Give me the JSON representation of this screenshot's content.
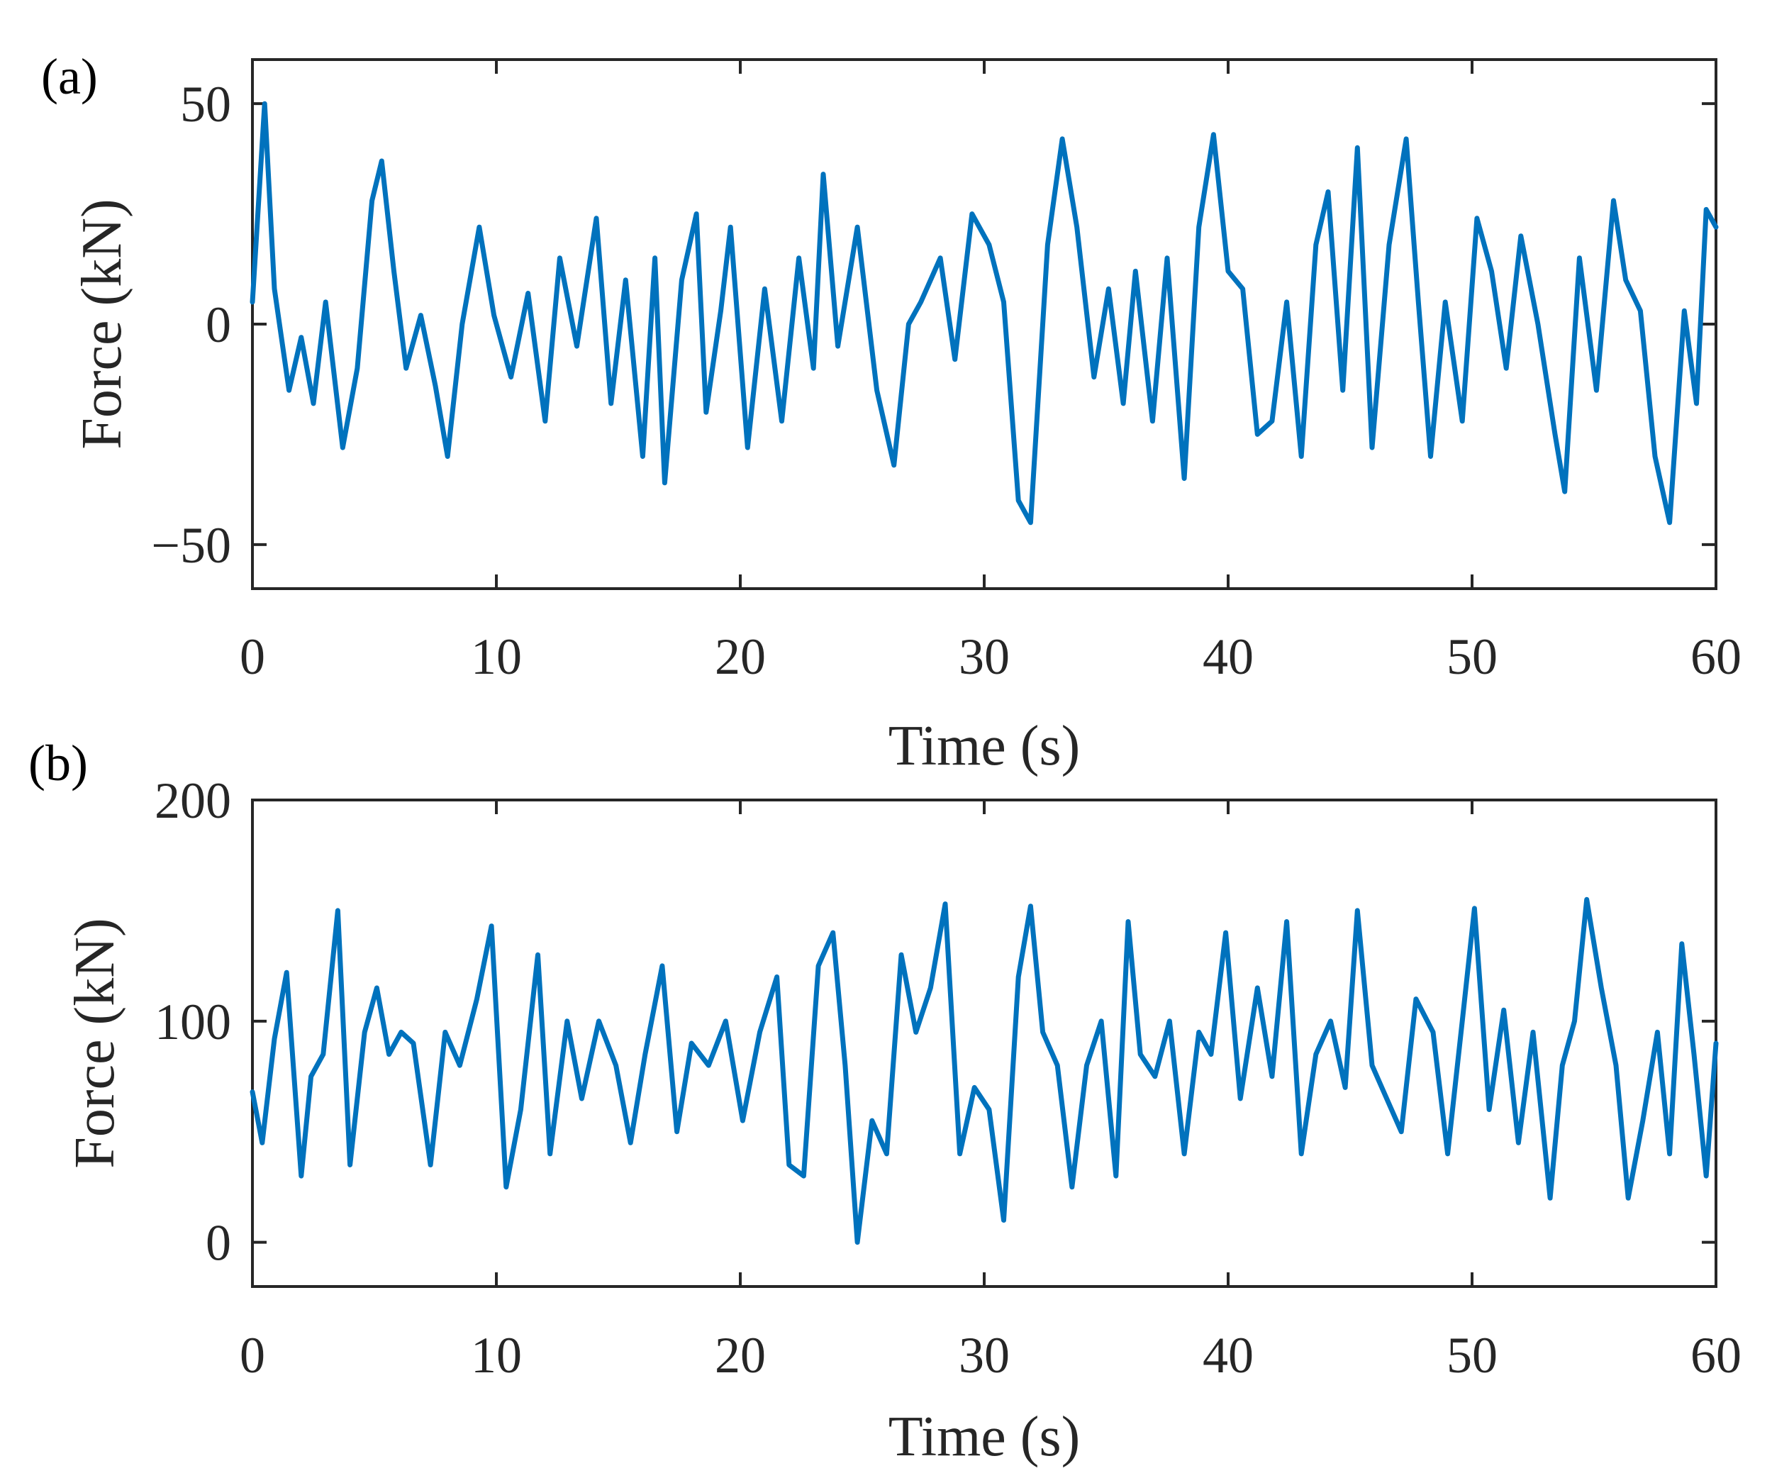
{
  "chart_data": [
    {
      "type": "line",
      "panel_label": "(a)",
      "xlabel": "Time (s)",
      "ylabel": "Force (kN)",
      "xlim": [
        0,
        60
      ],
      "ylim": [
        -60,
        60
      ],
      "x_ticks": [
        0,
        10,
        20,
        30,
        40,
        50,
        60
      ],
      "y_ticks": [
        -50,
        0,
        50
      ],
      "x_tick_labels": [
        "0",
        "10",
        "20",
        "30",
        "40",
        "50",
        "60"
      ],
      "y_tick_labels": [
        "−50",
        "0",
        "50"
      ],
      "grid": false,
      "legend": "none",
      "color": "#0072BD",
      "series": [
        {
          "x": [
            0,
            0.5,
            0.9,
            1.5,
            2.0,
            2.5,
            3.0,
            3.7,
            4.3,
            4.9,
            5.3,
            5.8,
            6.3,
            6.9,
            7.5,
            8.0,
            8.6,
            9.3,
            9.9,
            10.6,
            11.3,
            12.0,
            12.6,
            13.3,
            14.1,
            14.7,
            15.3,
            16.0,
            16.5,
            16.9,
            17.6,
            18.2,
            18.6,
            19.2,
            19.6,
            20.3,
            21.0,
            21.7,
            22.4,
            23.0,
            23.4,
            24.0,
            24.8,
            25.6,
            26.3,
            26.9,
            27.4,
            28.2,
            28.8,
            29.5,
            30.2,
            30.8,
            31.4,
            31.9,
            32.6,
            33.2,
            33.8,
            34.5,
            35.1,
            35.7,
            36.2,
            36.9,
            37.5,
            38.2,
            38.8,
            39.4,
            40.0,
            40.6,
            41.2,
            41.8,
            42.4,
            43.0,
            43.6,
            44.1,
            44.7,
            45.3,
            45.9,
            46.6,
            47.3,
            47.8,
            48.3,
            48.9,
            49.6,
            50.2,
            50.8,
            51.4,
            52.0,
            52.7,
            53.4,
            53.8,
            54.4,
            55.1,
            55.8,
            56.3,
            56.9,
            57.5,
            58.1,
            58.7,
            59.2,
            59.6,
            60.0
          ],
          "y": [
            5,
            50,
            8,
            -15,
            -3,
            -18,
            5,
            -28,
            -10,
            28,
            37,
            12,
            -10,
            2,
            -14,
            -30,
            0,
            22,
            2,
            -12,
            7,
            -22,
            15,
            -5,
            24,
            -18,
            10,
            -30,
            15,
            -36,
            10,
            25,
            -20,
            3,
            22,
            -28,
            8,
            -22,
            15,
            -10,
            34,
            -5,
            22,
            -15,
            -32,
            0,
            5,
            15,
            -8,
            25,
            18,
            5,
            -40,
            -45,
            18,
            42,
            22,
            -12,
            8,
            -18,
            12,
            -22,
            15,
            -35,
            22,
            43,
            12,
            8,
            -25,
            -22,
            5,
            -30,
            18,
            30,
            -15,
            40,
            -28,
            18,
            42,
            5,
            -30,
            5,
            -22,
            24,
            12,
            -10,
            20,
            0,
            -25,
            -38,
            15,
            -15,
            28,
            10,
            3,
            -30,
            -45,
            3,
            -18,
            26,
            22
          ]
        }
      ]
    },
    {
      "type": "line",
      "panel_label": "(b)",
      "xlabel": "Time (s)",
      "ylabel": "Force (kN)",
      "xlim": [
        0,
        60
      ],
      "ylim": [
        -20,
        200
      ],
      "x_ticks": [
        0,
        10,
        20,
        30,
        40,
        50,
        60
      ],
      "y_ticks": [
        0,
        100,
        200
      ],
      "x_tick_labels": [
        "0",
        "10",
        "20",
        "30",
        "40",
        "50",
        "60"
      ],
      "y_tick_labels": [
        "0",
        "100",
        "200"
      ],
      "grid": false,
      "legend": "none",
      "color": "#0072BD",
      "series": [
        {
          "x": [
            0,
            0.4,
            0.9,
            1.4,
            2.0,
            2.4,
            2.9,
            3.5,
            4.0,
            4.6,
            5.1,
            5.6,
            6.1,
            6.6,
            7.3,
            7.9,
            8.5,
            9.2,
            9.8,
            10.4,
            11.0,
            11.7,
            12.2,
            12.9,
            13.5,
            14.2,
            14.9,
            15.5,
            16.1,
            16.8,
            17.4,
            18.0,
            18.7,
            19.4,
            20.1,
            20.8,
            21.5,
            22.0,
            22.6,
            23.2,
            23.8,
            24.3,
            24.8,
            25.4,
            26.0,
            26.6,
            27.2,
            27.8,
            28.4,
            29.0,
            29.6,
            30.2,
            30.8,
            31.4,
            31.9,
            32.4,
            33.0,
            33.6,
            34.2,
            34.8,
            35.4,
            35.9,
            36.4,
            37.0,
            37.6,
            38.2,
            38.8,
            39.3,
            39.9,
            40.5,
            41.2,
            41.8,
            42.4,
            43.0,
            43.6,
            44.2,
            44.8,
            45.3,
            45.9,
            46.5,
            47.1,
            47.7,
            48.4,
            49.0,
            49.6,
            50.1,
            50.7,
            51.3,
            51.9,
            52.5,
            53.2,
            53.7,
            54.2,
            54.7,
            55.3,
            55.9,
            56.4,
            57.0,
            57.6,
            58.1,
            58.6,
            59.1,
            59.6,
            60.0
          ],
          "y": [
            68,
            45,
            92,
            122,
            30,
            75,
            85,
            150,
            35,
            95,
            115,
            85,
            95,
            90,
            35,
            95,
            80,
            110,
            143,
            25,
            60,
            130,
            40,
            100,
            65,
            100,
            80,
            45,
            85,
            125,
            50,
            90,
            80,
            100,
            55,
            95,
            120,
            35,
            30,
            125,
            140,
            80,
            0,
            55,
            40,
            130,
            95,
            115,
            153,
            40,
            70,
            60,
            10,
            120,
            152,
            95,
            80,
            25,
            80,
            100,
            30,
            145,
            85,
            75,
            100,
            40,
            95,
            85,
            140,
            65,
            115,
            75,
            145,
            40,
            85,
            100,
            70,
            150,
            80,
            65,
            50,
            110,
            95,
            40,
            100,
            151,
            60,
            105,
            45,
            95,
            20,
            80,
            100,
            155,
            115,
            80,
            20,
            55,
            95,
            40,
            135,
            85,
            30,
            90
          ]
        }
      ]
    }
  ]
}
